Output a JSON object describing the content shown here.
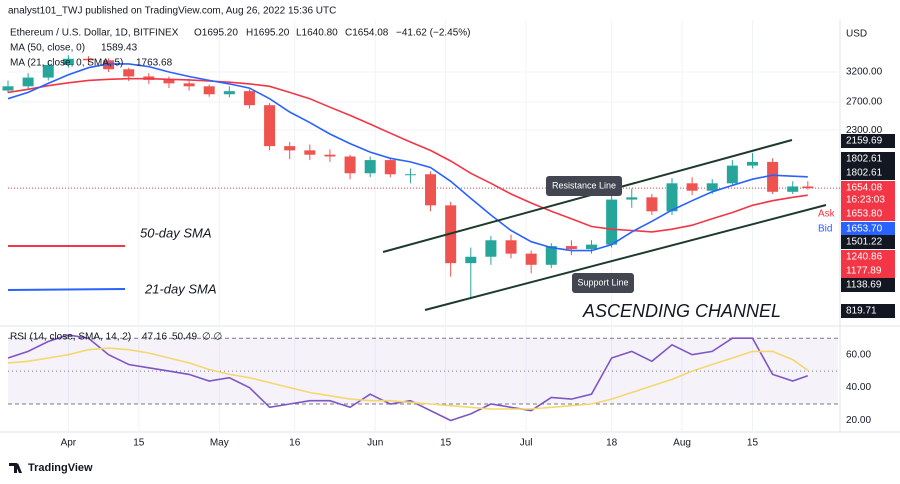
{
  "header": {
    "publisher": "analyst101_TWJ published on TradingView.com, Aug 26, 2022 15:36 UTC",
    "symbol": "Ethereum / U.S. Dollar, 1D, BITFINEX",
    "open": "O1695.20",
    "high": "H1695.20",
    "low": "L1640.80",
    "close": "C1654.08",
    "change": "−41.62 (−2.45%)",
    "ma50": "MA (50, close, 0)",
    "ma50_value": "1589.43",
    "ma21": "MA (21, close, 0, SMA, 5)",
    "ma21_value": "1763.68",
    "rsi": "RSI (14, close, SMA, 14, 2)",
    "rsi_value": "47.16",
    "rsi_ma_value": "50.49",
    "rsi_extra": "∅  ∅",
    "currency": "USD",
    "footer": "TradingView"
  },
  "annotations": {
    "resistance": "Resistance Line",
    "support": "Support Line",
    "channel": "ASCENDING CHANNEL",
    "sma50": "50-day SMA",
    "sma21": "21-day SMA"
  },
  "price_badges": [
    {
      "label": "2159.69",
      "color": "#131722"
    },
    {
      "label": "1802.61",
      "color": "#131722"
    },
    {
      "label": "1802.61",
      "color": "#131722"
    },
    {
      "label": "1654.08",
      "color": "#f23645"
    },
    {
      "label": "16:23:03",
      "color": "#f23645"
    },
    {
      "tag": "Ask",
      "label": "1653.80",
      "color": "#f23645"
    },
    {
      "tag": "Bid",
      "label": "1653.70",
      "color": "#2962ff"
    },
    {
      "label": "1501.22",
      "color": "#131722"
    },
    {
      "label": "1240.86",
      "color": "#f23645"
    },
    {
      "label": "1177.89",
      "color": "#f23645"
    },
    {
      "label": "1138.69",
      "color": "#131722"
    },
    {
      "label": "819.71",
      "color": "#131722"
    }
  ],
  "chart_data": [
    {
      "type": "candlestick",
      "log_scale": true,
      "x": [
        "2022-03-20",
        "2022-03-24",
        "2022-03-28",
        "2022-04-01",
        "2022-04-05",
        "2022-04-09",
        "2022-04-13",
        "2022-04-17",
        "2022-04-21",
        "2022-04-25",
        "2022-04-29",
        "2022-05-03",
        "2022-05-07",
        "2022-05-11",
        "2022-05-15",
        "2022-05-19",
        "2022-05-23",
        "2022-05-27",
        "2022-05-31",
        "2022-06-04",
        "2022-06-08",
        "2022-06-12",
        "2022-06-16",
        "2022-06-20",
        "2022-06-24",
        "2022-06-28",
        "2022-07-02",
        "2022-07-06",
        "2022-07-10",
        "2022-07-14",
        "2022-07-18",
        "2022-07-22",
        "2022-07-26",
        "2022-07-30",
        "2022-08-03",
        "2022-08-07",
        "2022-08-11",
        "2022-08-15",
        "2022-08-19",
        "2022-08-23",
        "2022-08-26"
      ],
      "open": [
        2880,
        2950,
        3100,
        3330,
        3450,
        3420,
        3250,
        3120,
        3060,
        3000,
        2950,
        2820,
        2870,
        2650,
        2100,
        2050,
        2000,
        1980,
        1800,
        1940,
        1790,
        1790,
        1500,
        1080,
        1120,
        1230,
        1140,
        1070,
        1190,
        1170,
        1200,
        1550,
        1570,
        1450,
        1700,
        1630,
        1700,
        1880,
        1920,
        1620,
        1670
      ],
      "high": [
        3050,
        3180,
        3400,
        3520,
        3500,
        3460,
        3280,
        3180,
        3120,
        3080,
        2980,
        2950,
        2900,
        2680,
        2150,
        2120,
        2060,
        2000,
        1980,
        1960,
        1850,
        1820,
        1530,
        1180,
        1260,
        1270,
        1160,
        1210,
        1230,
        1230,
        1600,
        1650,
        1600,
        1750,
        1760,
        1740,
        1940,
        2020,
        1960,
        1720,
        1720
      ],
      "low": [
        2840,
        2900,
        3050,
        3280,
        3330,
        3200,
        3040,
        2990,
        2920,
        2880,
        2780,
        2770,
        2600,
        2050,
        1950,
        1940,
        1920,
        1740,
        1760,
        1760,
        1700,
        1450,
        1000,
        880,
        1070,
        1110,
        1020,
        1050,
        1130,
        1140,
        1180,
        1480,
        1420,
        1420,
        1590,
        1600,
        1680,
        1850,
        1600,
        1600,
        1640.8
      ],
      "close": [
        2950,
        3100,
        3330,
        3450,
        3420,
        3250,
        3120,
        3060,
        3000,
        2950,
        2820,
        2870,
        2650,
        2100,
        2050,
        2000,
        1980,
        1800,
        1940,
        1790,
        1790,
        1500,
        1080,
        1120,
        1230,
        1140,
        1070,
        1190,
        1170,
        1200,
        1550,
        1570,
        1450,
        1700,
        1630,
        1700,
        1880,
        1920,
        1620,
        1670,
        1654.08
      ],
      "up_color": "#26a69a",
      "down_color": "#ef5350",
      "series": [
        {
          "name": "MA (50, close, 0)",
          "color": "#f23645",
          "values": [
            2850,
            2900,
            2960,
            3010,
            3050,
            3070,
            3080,
            3080,
            3070,
            3060,
            3040,
            3020,
            2990,
            2950,
            2850,
            2750,
            2620,
            2500,
            2380,
            2260,
            2150,
            2050,
            1930,
            1800,
            1700,
            1600,
            1520,
            1450,
            1390,
            1330,
            1310,
            1300,
            1290,
            1310,
            1340,
            1390,
            1440,
            1500,
            1540,
            1570,
            1589.43
          ]
        },
        {
          "name": "MA (21, close, 0, SMA, 5)",
          "color": "#2962ff",
          "values": [
            2750,
            2850,
            3000,
            3150,
            3280,
            3350,
            3350,
            3300,
            3200,
            3120,
            3050,
            2990,
            2920,
            2750,
            2550,
            2400,
            2250,
            2130,
            2030,
            1960,
            1920,
            1860,
            1720,
            1560,
            1420,
            1300,
            1220,
            1180,
            1160,
            1160,
            1200,
            1290,
            1370,
            1460,
            1540,
            1620,
            1680,
            1740,
            1780,
            1770,
            1763.68
          ]
        }
      ],
      "xlim": [
        "2022-03-20",
        "2022-09-01"
      ],
      "xticks": [
        {
          "value": "2022-04-01",
          "label": "Apr"
        },
        {
          "value": "2022-04-15",
          "label": "15"
        },
        {
          "value": "2022-05-01",
          "label": "May"
        },
        {
          "value": "2022-05-16",
          "label": "16"
        },
        {
          "value": "2022-06-01",
          "label": "Jun"
        },
        {
          "value": "2022-06-15",
          "label": "15"
        },
        {
          "value": "2022-07-01",
          "label": "Jul"
        },
        {
          "value": "2022-07-18",
          "label": "18"
        },
        {
          "value": "2022-08-01",
          "label": "Aug"
        },
        {
          "value": "2022-08-15",
          "label": "15"
        }
      ],
      "ylim": [
        760,
        4300
      ],
      "yticks": [
        {
          "value": 3200,
          "label": "3200.00"
        },
        {
          "value": 2700,
          "label": "2700.00"
        },
        {
          "value": 2300,
          "label": "2300.00"
        }
      ],
      "last_price": 1654.08
    },
    {
      "type": "line",
      "series": [
        {
          "name": "RSI",
          "color": "#7e57c2",
          "values": [
            58,
            62,
            68,
            72,
            70,
            60,
            54,
            52,
            50,
            48,
            44,
            46,
            40,
            28,
            30,
            32,
            32,
            28,
            36,
            30,
            32,
            26,
            20,
            24,
            30,
            28,
            26,
            34,
            33,
            36,
            58,
            62,
            56,
            66,
            60,
            62,
            70,
            70,
            48,
            44,
            47.16
          ]
        },
        {
          "name": "RSI MA",
          "color": "#f5d76e",
          "values": [
            55,
            56,
            58,
            60,
            63,
            64,
            63,
            61,
            58,
            55,
            51,
            48,
            46,
            43,
            40,
            37,
            35,
            33,
            32,
            32,
            31,
            30,
            29,
            28,
            27,
            27,
            27,
            28,
            29,
            30,
            33,
            37,
            41,
            45,
            50,
            54,
            58,
            62,
            62,
            57,
            50.49
          ]
        }
      ],
      "ylim": [
        13,
        75
      ],
      "yticks": [
        {
          "value": 60,
          "label": "60.00"
        },
        {
          "value": 40,
          "label": "40.00"
        },
        {
          "value": 20,
          "label": "20.00"
        }
      ],
      "bands": [
        30,
        50,
        70
      ]
    }
  ]
}
